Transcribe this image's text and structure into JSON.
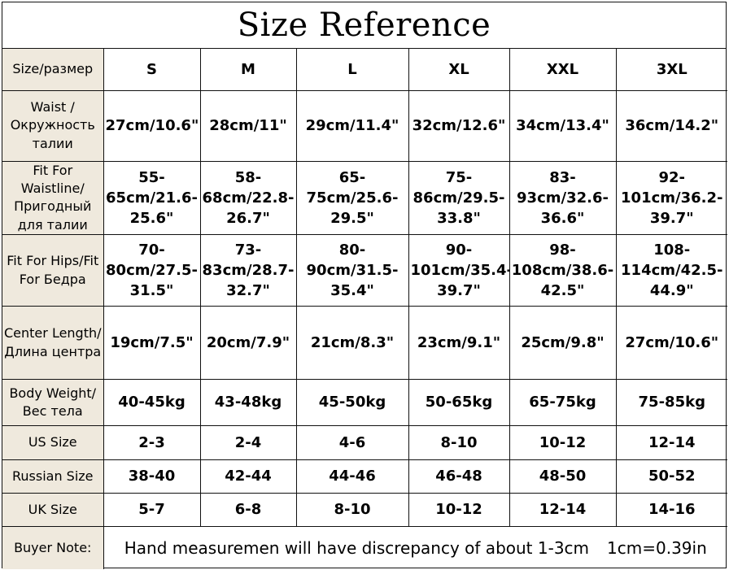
{
  "title": "Size Reference",
  "header": {
    "label": "Size/размер",
    "sizes": [
      "S",
      "M",
      "L",
      "XL",
      "XXL",
      "3XL"
    ]
  },
  "rows": [
    {
      "label": "Waist /Окружность талии",
      "values": [
        "27cm/10.6\"",
        "28cm/11\"",
        "29cm/11.4\"",
        "32cm/12.6\"",
        "34cm/13.4\"",
        "36cm/14.2\""
      ]
    },
    {
      "label": "Fit For Waistline/Пригодный для талии",
      "values": [
        "55-65cm/21.6-25.6\"",
        "58-68cm/22.8-26.7\"",
        "65-75cm/25.6-29.5\"",
        "75-86cm/29.5-33.8\"",
        "83-93cm/32.6-36.6\"",
        "92-101cm/36.2-39.7\""
      ]
    },
    {
      "label": "Fit For Hips/Fit For Бедра",
      "values": [
        "70-80cm/27.5-31.5\"",
        "73-83cm/28.7-32.7\"",
        "80-90cm/31.5-35.4\"",
        "90-101cm/35.4-39.7\"",
        "98-108cm/38.6-42.5\"",
        "108-114cm/42.5-44.9\""
      ]
    },
    {
      "label": "Center Length/Длина центра",
      "values": [
        "19cm/7.5\"",
        "20cm/7.9\"",
        "21cm/8.3\"",
        "23cm/9.1\"",
        "25cm/9.8\"",
        "27cm/10.6\""
      ]
    },
    {
      "label": "Body Weight/Вес тела",
      "values": [
        "40-45kg",
        "43-48kg",
        "45-50kg",
        "50-65kg",
        "65-75kg",
        "75-85kg"
      ]
    },
    {
      "label": "US Size",
      "values": [
        "2-3",
        "2-4",
        "4-6",
        "8-10",
        "10-12",
        "12-14"
      ]
    },
    {
      "label": "Russian Size",
      "values": [
        "38-40",
        "42-44",
        "44-46",
        "46-48",
        "48-50",
        "50-52"
      ]
    },
    {
      "label": "UK Size",
      "values": [
        "5-7",
        "6-8",
        "8-10",
        "10-12",
        "12-14",
        "14-16"
      ]
    }
  ],
  "note": {
    "label": "Buyer Note:",
    "text": "Hand measuremen will have discrepancy of about 1-3cm",
    "conversion": "1cm=0.39in"
  }
}
